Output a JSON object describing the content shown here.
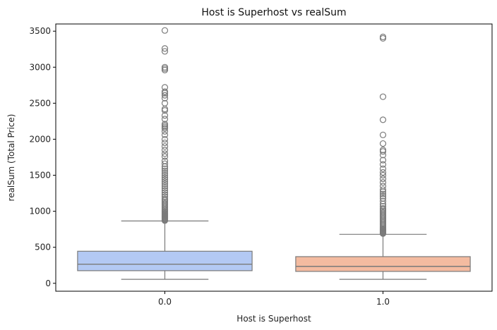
{
  "chart_data": {
    "type": "boxplot",
    "title": "Host is Superhost vs realSum",
    "xlabel": "Host is Superhost",
    "ylabel": "realSum (Total Price)",
    "ylim": [
      -110,
      3600
    ],
    "yticks": [
      0,
      500,
      1000,
      1500,
      2000,
      2500,
      3000,
      3500
    ],
    "grid": false,
    "legend": "none",
    "categories": [
      "0.0",
      "1.0"
    ],
    "boxes": [
      {
        "category": "0.0",
        "color": "#b3c9f4",
        "whisker_low": 55,
        "q1": 175,
        "median": 265,
        "q3": 445,
        "whisker_high": 865,
        "outliers": [
          870,
          880,
          890,
          900,
          910,
          920,
          930,
          940,
          950,
          960,
          970,
          985,
          1000,
          1015,
          1030,
          1050,
          1070,
          1090,
          1110,
          1130,
          1150,
          1170,
          1200,
          1230,
          1260,
          1290,
          1320,
          1350,
          1380,
          1410,
          1440,
          1470,
          1500,
          1530,
          1560,
          1590,
          1620,
          1660,
          1700,
          1760,
          1800,
          1850,
          1900,
          1950,
          2000,
          2060,
          2110,
          2150,
          2170,
          2190,
          2210,
          2280,
          2330,
          2400,
          2420,
          2500,
          2570,
          2610,
          2640,
          2660,
          2720,
          2960,
          2980,
          3000,
          3220,
          3260,
          3510
        ]
      },
      {
        "category": "1.0",
        "color": "#f4bba0",
        "whisker_low": 55,
        "q1": 165,
        "median": 235,
        "q3": 370,
        "whisker_high": 680,
        "outliers": [
          690,
          700,
          710,
          720,
          730,
          740,
          750,
          760,
          780,
          800,
          820,
          840,
          860,
          880,
          900,
          920,
          940,
          960,
          980,
          1000,
          1020,
          1040,
          1070,
          1100,
          1140,
          1180,
          1210,
          1240,
          1270,
          1300,
          1350,
          1400,
          1450,
          1500,
          1540,
          1590,
          1650,
          1710,
          1780,
          1830,
          1850,
          1940,
          2060,
          2270,
          2590,
          3400,
          3420
        ]
      }
    ],
    "whisker_color": "#7a7a7a"
  }
}
